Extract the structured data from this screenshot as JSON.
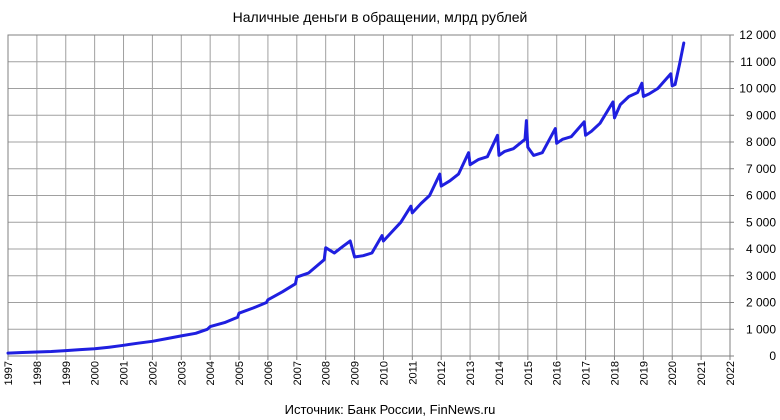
{
  "chart_data": {
    "type": "line",
    "title": "Наличные деньги в обращении, млрд рублей",
    "source": "Источник: Банк России, FinNews.ru",
    "xlabel": "",
    "ylabel": "",
    "xlim": [
      1997,
      2022
    ],
    "ylim": [
      0,
      12000
    ],
    "grid": true,
    "y_axis_side": "right",
    "x_tick_labels": [
      "1997",
      "1998",
      "1999",
      "2000",
      "2001",
      "2002",
      "2003",
      "2004",
      "2005",
      "2006",
      "2007",
      "2008",
      "2009",
      "2010",
      "2011",
      "2012",
      "2013",
      "2014",
      "2015",
      "2016",
      "2017",
      "2018",
      "2019",
      "2020",
      "2021",
      "2022"
    ],
    "y_tick_labels": [
      "0",
      "1 000",
      "2 000",
      "3 000",
      "4 000",
      "5 000",
      "6 000",
      "7 000",
      "8 000",
      "9 000",
      "10 000",
      "11 000",
      "12 000"
    ],
    "line_color": "#1f1fe0",
    "series": [
      {
        "x": [
          1997.0,
          1997.5,
          1998.0,
          1998.5,
          1999.0,
          1999.5,
          2000.0,
          2000.5,
          2001.0,
          2001.5,
          2002.0,
          2002.5,
          2003.0,
          2003.5,
          2003.9,
          2004.0,
          2004.5,
          2004.95,
          2005.0,
          2005.5,
          2005.95,
          2006.0,
          2006.5,
          2006.95,
          2007.0,
          2007.4,
          2007.95,
          2008.0,
          2008.3,
          2008.6,
          2008.85,
          2009.0,
          2009.3,
          2009.6,
          2009.95,
          2010.0,
          2010.3,
          2010.6,
          2010.95,
          2011.0,
          2011.3,
          2011.6,
          2011.95,
          2012.0,
          2012.3,
          2012.6,
          2012.95,
          2013.0,
          2013.3,
          2013.6,
          2013.95,
          2014.0,
          2014.2,
          2014.5,
          2014.9,
          2014.95,
          2015.0,
          2015.2,
          2015.5,
          2015.95,
          2016.0,
          2016.2,
          2016.5,
          2016.95,
          2017.0,
          2017.2,
          2017.5,
          2017.95,
          2018.0,
          2018.2,
          2018.5,
          2018.8,
          2018.95,
          2019.0,
          2019.2,
          2019.5,
          2019.95,
          2020.0,
          2020.1,
          2020.25,
          2020.4
        ],
        "y": [
          110,
          130,
          150,
          170,
          200,
          240,
          270,
          330,
          400,
          480,
          550,
          650,
          750,
          850,
          1000,
          1100,
          1250,
          1450,
          1600,
          1800,
          2000,
          2100,
          2400,
          2700,
          2950,
          3100,
          3600,
          4050,
          3850,
          4100,
          4300,
          3700,
          3750,
          3850,
          4500,
          4300,
          4650,
          5000,
          5600,
          5350,
          5700,
          6000,
          6800,
          6350,
          6550,
          6800,
          7600,
          7150,
          7350,
          7450,
          8250,
          7500,
          7650,
          7750,
          8100,
          8800,
          7800,
          7500,
          7600,
          8500,
          7950,
          8100,
          8200,
          8750,
          8250,
          8400,
          8700,
          9500,
          8900,
          9400,
          9700,
          9850,
          10200,
          9700,
          9800,
          10000,
          10550,
          10100,
          10150,
          10900,
          11700
        ]
      }
    ]
  }
}
